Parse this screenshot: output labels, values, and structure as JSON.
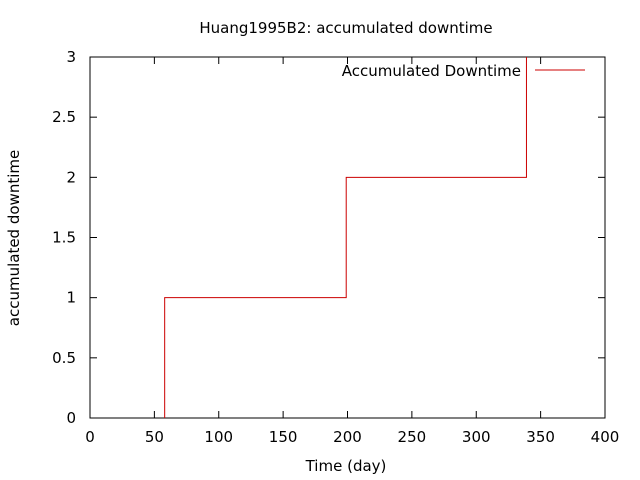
{
  "chart_data": {
    "type": "line",
    "step": true,
    "title": "Huang1995B2: accumulated downtime",
    "xlabel": "Time (day)",
    "ylabel": "accumulated downtime",
    "xlim": [
      0,
      400
    ],
    "ylim": [
      0,
      3
    ],
    "xticks": [
      0,
      50,
      100,
      150,
      200,
      250,
      300,
      350,
      400
    ],
    "yticks": [
      0,
      0.5,
      1,
      1.5,
      2,
      2.5,
      3
    ],
    "xtick_labels": [
      "0",
      "50",
      "100",
      "150",
      "200",
      "250",
      "300",
      "350",
      "400"
    ],
    "ytick_labels": [
      "0",
      "0.5",
      "1",
      "1.5",
      "2",
      "2.5",
      "3"
    ],
    "grid": false,
    "legend_position": "top-right",
    "series": [
      {
        "name": "Accumulated Downtime",
        "color": "#cc0000",
        "x": [
          58,
          58,
          199,
          199,
          339,
          339
        ],
        "y": [
          0,
          1,
          1,
          2,
          2,
          3
        ]
      }
    ]
  }
}
